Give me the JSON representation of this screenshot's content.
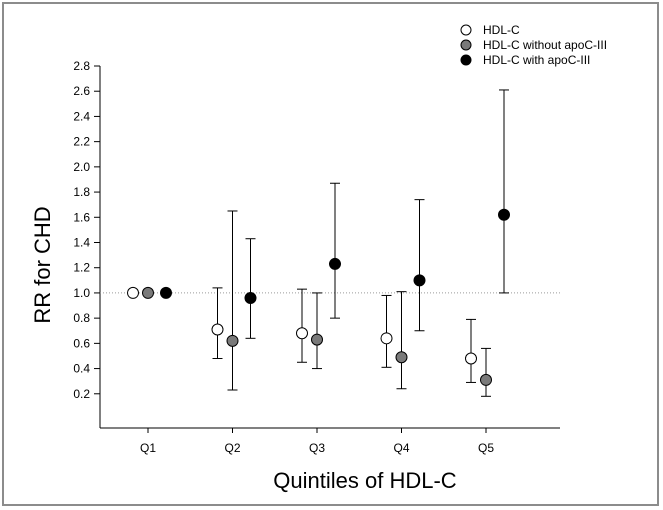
{
  "chart_data": {
    "type": "scatter",
    "xlabel": "Quintiles of HDL-C",
    "ylabel": "RR for CHD",
    "categories": [
      "Q1",
      "Q2",
      "Q3",
      "Q4",
      "Q5"
    ],
    "y_ticks": [
      "0.2",
      "0.4",
      "0.6",
      "0.8",
      "1.0",
      "1.2",
      "1.4",
      "1.6",
      "1.8",
      "2.0",
      "2.2",
      "2.4",
      "2.6",
      "2.8"
    ],
    "ylim": [
      0.0,
      2.8
    ],
    "reference_line": 1.0,
    "legend_position": "top-right",
    "series": [
      {
        "name": "HDL-C",
        "color": "#ffffff",
        "values": [
          1.0,
          0.71,
          0.68,
          0.64,
          0.48
        ],
        "lower": [
          null,
          0.48,
          0.45,
          0.41,
          0.29
        ],
        "upper": [
          null,
          1.04,
          1.03,
          0.98,
          0.79
        ]
      },
      {
        "name": "HDL-C without apoC-III",
        "color": "#7a7a7a",
        "values": [
          1.0,
          0.62,
          0.63,
          0.49,
          0.31
        ],
        "lower": [
          null,
          0.23,
          0.4,
          0.24,
          0.18
        ],
        "upper": [
          null,
          1.65,
          1.0,
          1.01,
          0.56
        ]
      },
      {
        "name": "HDL-C with apoC-III",
        "color": "#000000",
        "values": [
          1.0,
          0.96,
          1.23,
          1.1,
          1.62
        ],
        "lower": [
          null,
          0.64,
          0.8,
          0.7,
          1.0
        ],
        "upper": [
          null,
          1.43,
          1.87,
          1.74,
          2.61
        ]
      }
    ]
  }
}
